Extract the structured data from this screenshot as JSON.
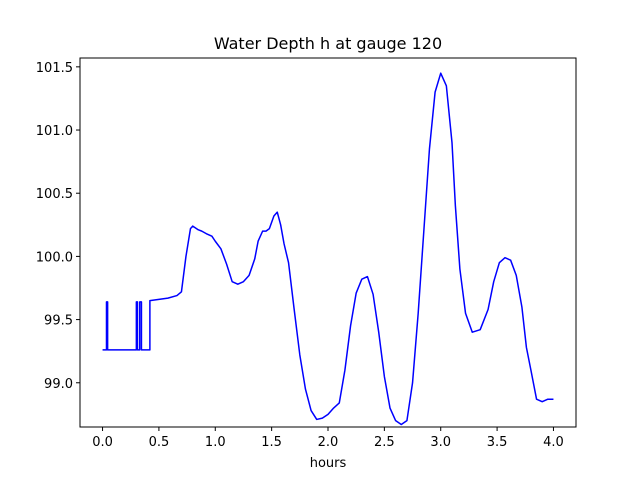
{
  "chart_data": {
    "type": "line",
    "title": "Water Depth h at gauge 120",
    "xlabel": "hours",
    "ylabel": "",
    "xlim": [
      -0.2,
      4.2
    ],
    "ylim": [
      98.65,
      101.57
    ],
    "xticks": [
      0.0,
      0.5,
      1.0,
      1.5,
      2.0,
      2.5,
      3.0,
      3.5,
      4.0
    ],
    "xtick_labels": [
      "0.0",
      "0.5",
      "1.0",
      "1.5",
      "2.0",
      "2.5",
      "3.0",
      "3.5",
      "4.0"
    ],
    "yticks": [
      99.0,
      99.5,
      100.0,
      100.5,
      101.0,
      101.5
    ],
    "ytick_labels": [
      "99.0",
      "99.5",
      "100.0",
      "100.5",
      "101.0",
      "101.5"
    ],
    "grid": false,
    "legend": "none",
    "series": [
      {
        "color": "#0000ff",
        "x": [
          0.0,
          0.035,
          0.035,
          0.045,
          0.045,
          0.055,
          0.055,
          0.3,
          0.3,
          0.31,
          0.31,
          0.33,
          0.33,
          0.345,
          0.345,
          0.355,
          0.355,
          0.42,
          0.42,
          0.5,
          0.58,
          0.66,
          0.7,
          0.74,
          0.78,
          0.8,
          0.85,
          0.88,
          0.92,
          0.97,
          1.0,
          1.05,
          1.1,
          1.15,
          1.2,
          1.25,
          1.3,
          1.35,
          1.38,
          1.42,
          1.45,
          1.48,
          1.52,
          1.55,
          1.58,
          1.61,
          1.65,
          1.7,
          1.75,
          1.8,
          1.85,
          1.9,
          1.95,
          2.0,
          2.05,
          2.1,
          2.15,
          2.2,
          2.25,
          2.3,
          2.35,
          2.4,
          2.45,
          2.5,
          2.55,
          2.6,
          2.65,
          2.7,
          2.75,
          2.8,
          2.85,
          2.9,
          2.95,
          3.0,
          3.05,
          3.1,
          3.13,
          3.17,
          3.22,
          3.28,
          3.35,
          3.42,
          3.47,
          3.52,
          3.57,
          3.62,
          3.67,
          3.72,
          3.76,
          3.8,
          3.85,
          3.9,
          3.95,
          4.0
        ],
        "y": [
          99.26,
          99.26,
          99.64,
          99.64,
          99.26,
          99.26,
          99.26,
          99.26,
          99.64,
          99.64,
          99.26,
          99.26,
          99.64,
          99.64,
          99.26,
          99.26,
          99.26,
          99.26,
          99.65,
          99.66,
          99.67,
          99.69,
          99.72,
          100.0,
          100.22,
          100.24,
          100.21,
          100.2,
          100.18,
          100.16,
          100.12,
          100.06,
          99.94,
          99.8,
          99.78,
          99.8,
          99.85,
          99.98,
          100.12,
          100.2,
          100.2,
          100.22,
          100.32,
          100.35,
          100.25,
          100.1,
          99.95,
          99.58,
          99.22,
          98.95,
          98.78,
          98.71,
          98.72,
          98.75,
          98.8,
          98.84,
          99.1,
          99.45,
          99.71,
          99.82,
          99.84,
          99.7,
          99.4,
          99.05,
          98.8,
          98.7,
          98.67,
          98.7,
          99.0,
          99.55,
          100.2,
          100.85,
          101.3,
          101.45,
          101.35,
          100.9,
          100.4,
          99.9,
          99.55,
          99.4,
          99.42,
          99.58,
          99.8,
          99.95,
          99.99,
          99.97,
          99.85,
          99.6,
          99.28,
          99.1,
          98.87,
          98.85,
          98.87,
          98.87
        ]
      }
    ]
  }
}
